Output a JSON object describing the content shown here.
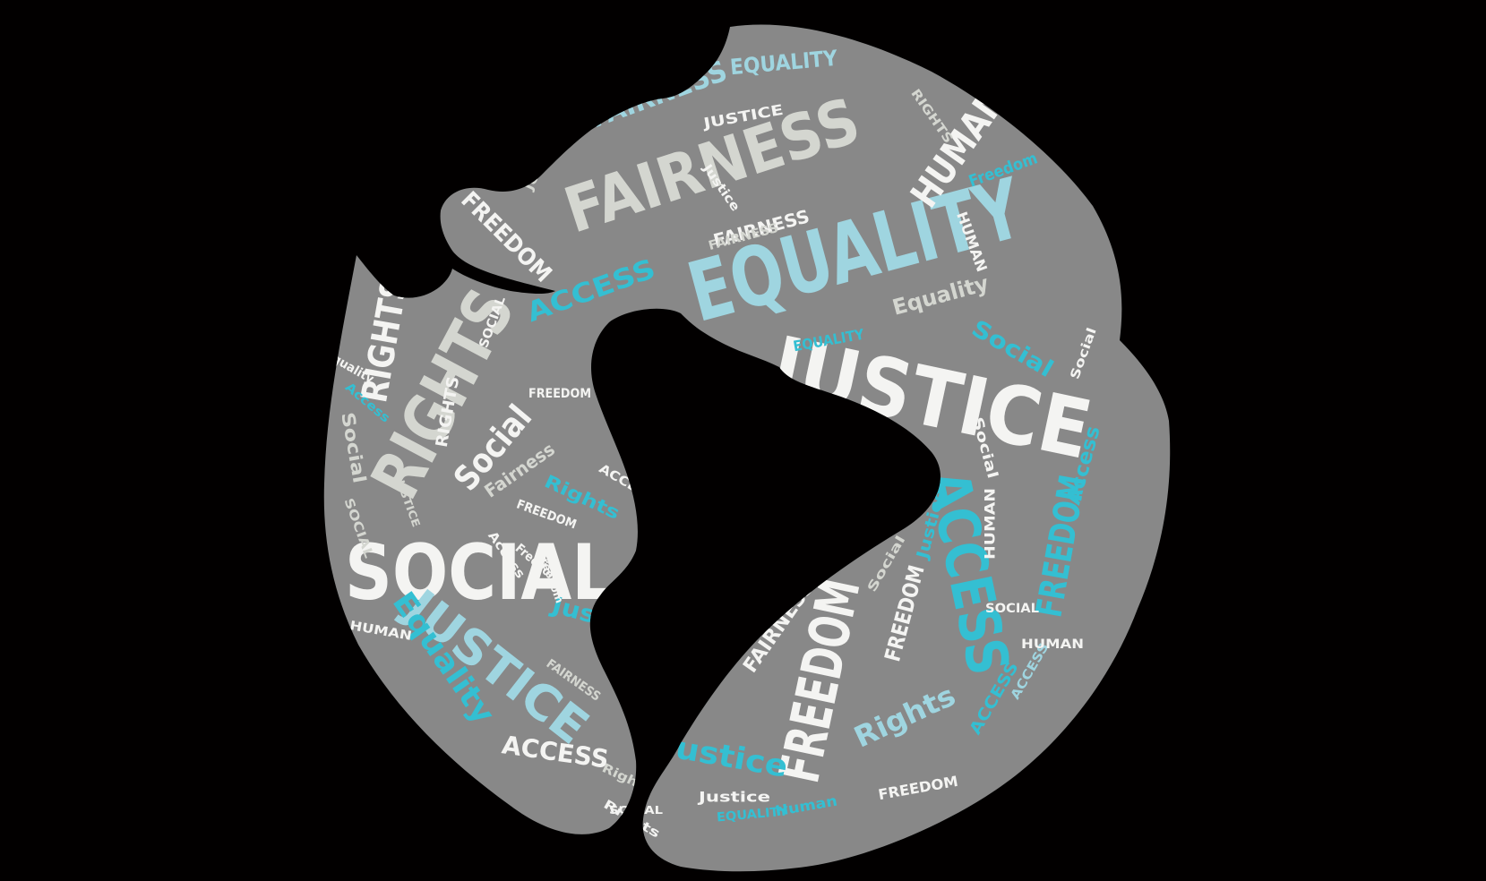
{
  "colors": {
    "background": "#020000",
    "globe": "#888888",
    "white": "#f4f4f2",
    "light_gray": "#d4d6d0",
    "teal": "#34bfd2",
    "light_blue": "#9fd5e0"
  },
  "words": [
    {
      "text": "SOCIAL",
      "color": "white"
    },
    {
      "text": "JUSTICE",
      "color": "white"
    },
    {
      "text": "EQUALITY",
      "color": "light_blue"
    },
    {
      "text": "FAIRNESS",
      "color": "light_gray"
    },
    {
      "text": "RIGHTS",
      "color": "light_gray"
    },
    {
      "text": "ACCESS",
      "color": "teal"
    },
    {
      "text": "FREEDOM",
      "color": "white"
    },
    {
      "text": "JUSTICE",
      "color": "light_blue"
    },
    {
      "text": "HUMAN",
      "color": "white"
    },
    {
      "text": "FREEDOM",
      "color": "teal"
    },
    {
      "text": "RIGHTS",
      "color": "white"
    },
    {
      "text": "Equality",
      "color": "teal"
    },
    {
      "text": "FAIRNESS",
      "color": "light_blue"
    },
    {
      "text": "EQUALITY",
      "color": "light_blue"
    },
    {
      "text": "ACCESS",
      "color": "teal"
    },
    {
      "text": "FREEDOM",
      "color": "white"
    },
    {
      "text": "ACCESS",
      "color": "white"
    },
    {
      "text": "Social",
      "color": "white"
    },
    {
      "text": "Justice",
      "color": "teal"
    },
    {
      "text": "Rights",
      "color": "light_blue"
    },
    {
      "text": "Social",
      "color": "teal"
    },
    {
      "text": "Equality",
      "color": "light_gray"
    },
    {
      "text": "Access",
      "color": "teal"
    },
    {
      "text": "Justice",
      "color": "teal"
    },
    {
      "text": "FAIRNESS",
      "color": "white"
    },
    {
      "text": "Fairness",
      "color": "light_gray"
    },
    {
      "text": "Rights",
      "color": "teal"
    },
    {
      "text": "FREEDOM",
      "color": "white"
    },
    {
      "text": "HUMAN",
      "color": "white"
    },
    {
      "text": "FAIRNESS",
      "color": "white"
    },
    {
      "text": "Freedom",
      "color": "teal"
    },
    {
      "text": "EQUALITY",
      "color": "teal"
    },
    {
      "text": "Justice",
      "color": "white"
    },
    {
      "text": "Human",
      "color": "teal"
    },
    {
      "text": "EQUALITY",
      "color": "teal"
    },
    {
      "text": "SOCIAL",
      "color": "white"
    },
    {
      "text": "JUSTICE",
      "color": "white"
    },
    {
      "text": "Social",
      "color": "white"
    },
    {
      "text": "Social",
      "color": "light_gray"
    },
    {
      "text": "FREEDOM",
      "color": "white"
    },
    {
      "text": "HUMAN",
      "color": "white"
    },
    {
      "text": "ACCESS",
      "color": "teal"
    },
    {
      "text": "RIGHTS",
      "color": "white"
    },
    {
      "text": "Justice",
      "color": "teal"
    },
    {
      "text": "FREEDOM",
      "color": "white"
    },
    {
      "text": "JUSTICE",
      "color": "light_gray"
    },
    {
      "text": "Access",
      "color": "teal"
    },
    {
      "text": "SOCIAL",
      "color": "light_gray"
    },
    {
      "text": "Access",
      "color": "white"
    },
    {
      "text": "FAIRNESS",
      "color": "light_gray"
    },
    {
      "text": "FREEDOM",
      "color": "white"
    },
    {
      "text": "Equality",
      "color": "white"
    },
    {
      "text": "JUSTICE",
      "color": "light_gray"
    },
    {
      "text": "RIGHTS",
      "color": "light_gray"
    },
    {
      "text": "ACCESS",
      "color": "light_blue"
    },
    {
      "text": "Social",
      "color": "light_gray"
    },
    {
      "text": "Freedom",
      "color": "white"
    },
    {
      "text": "SOCIAL",
      "color": "white"
    },
    {
      "text": "HUMAN",
      "color": "white"
    },
    {
      "text": "FAIRNESS",
      "color": "light_gray"
    },
    {
      "text": "Rights",
      "color": "white"
    },
    {
      "text": "HUMAN",
      "color": "white"
    },
    {
      "text": "ACCESS",
      "color": "white"
    },
    {
      "text": "SOCIAL",
      "color": "light_gray"
    },
    {
      "text": "Justice",
      "color": "white"
    },
    {
      "text": "Equality",
      "color": "white"
    },
    {
      "text": "Social",
      "color": "white"
    },
    {
      "text": "Freedom",
      "color": "white"
    },
    {
      "text": "SOCIAL",
      "color": "white"
    },
    {
      "text": "Rights",
      "color": "light_gray"
    }
  ]
}
